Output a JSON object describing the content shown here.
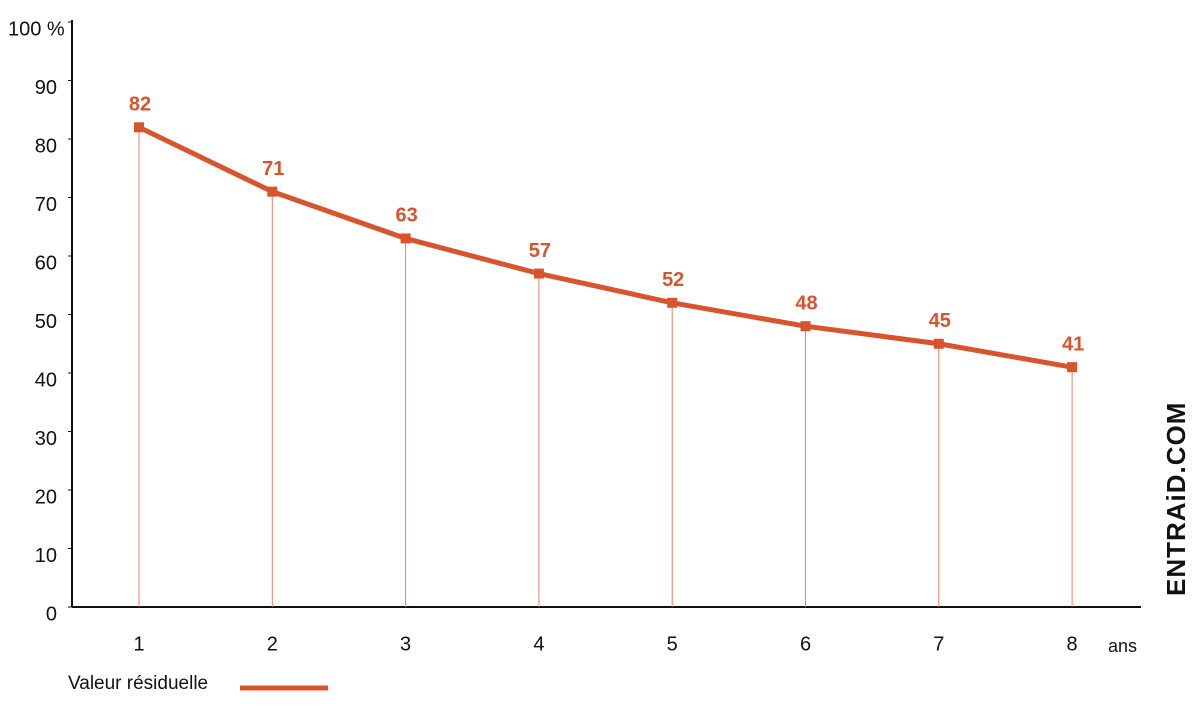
{
  "chart_data": {
    "type": "line",
    "categories": [
      "1",
      "2",
      "3",
      "4",
      "5",
      "6",
      "7",
      "8"
    ],
    "x_label": "ans",
    "series": [
      {
        "name": "Valeur résiduelle",
        "color": "#d9532b",
        "values": [
          82,
          71,
          63,
          57,
          52,
          48,
          45,
          41
        ]
      }
    ],
    "ylim": [
      0,
      100
    ],
    "yticks": [
      0,
      10,
      20,
      30,
      40,
      50,
      60,
      70,
      80,
      90,
      {
        "value": 100,
        "label": "100 %"
      }
    ],
    "drop_lines": true,
    "watermark": "ENTRAiD.COM"
  }
}
